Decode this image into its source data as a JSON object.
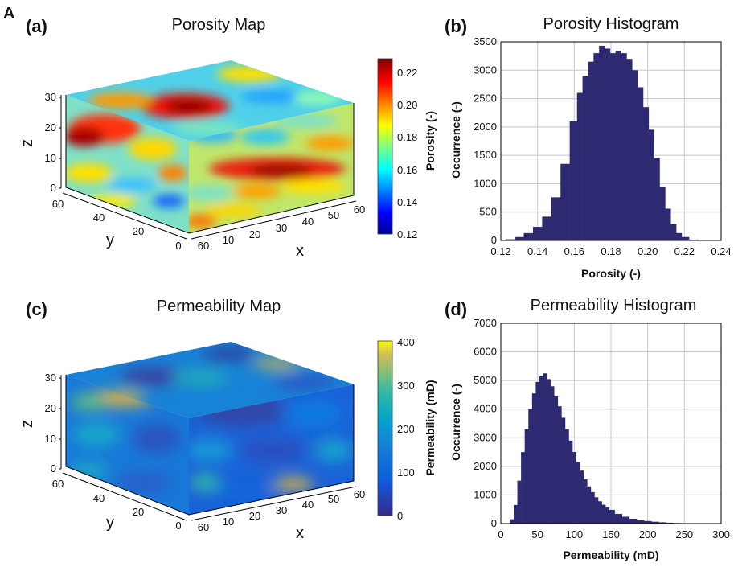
{
  "figure_label": "A",
  "colors": {
    "histogram_fill": "#2e2a72",
    "jet_low": "#00008f",
    "jet_high": "#800000",
    "parula_low": "#352a87",
    "parula_high": "#f9fb0e"
  },
  "chart_data": [
    {
      "panel": "(a)",
      "type": "heatmap",
      "title": "Porosity Map",
      "x_label": "x",
      "y_label": "y",
      "z_label": "z",
      "x_ticks": [
        "10",
        "20",
        "30",
        "40",
        "50",
        "60"
      ],
      "y_ticks": [
        "60",
        "40",
        "20",
        "0"
      ],
      "z_ticks": [
        "30",
        "20",
        "10",
        "0"
      ],
      "colorbar": {
        "label": "Porosity (-)",
        "min": 0.12,
        "max": 0.22,
        "ticks": [
          "0.22",
          "0.20",
          "0.18",
          "0.16",
          "0.14",
          "0.12"
        ],
        "colormap": "jet"
      }
    },
    {
      "panel": "(b)",
      "type": "bar",
      "title": "Porosity Histogram",
      "xlabel": "Porosity (-)",
      "ylabel": "Occurrence (-)",
      "xlim": [
        0.12,
        0.24
      ],
      "ylim": [
        0,
        3500
      ],
      "x_ticks": [
        "0.12",
        "0.14",
        "0.16",
        "0.18",
        "0.20",
        "0.22",
        "0.24"
      ],
      "y_ticks": [
        "0",
        "500",
        "1000",
        "1500",
        "2000",
        "2500",
        "3000",
        "3500"
      ],
      "grid": true,
      "x": [
        0.125,
        0.13,
        0.135,
        0.14,
        0.145,
        0.15,
        0.155,
        0.16,
        0.163,
        0.166,
        0.169,
        0.172,
        0.175,
        0.178,
        0.181,
        0.184,
        0.187,
        0.19,
        0.193,
        0.196,
        0.199,
        0.202,
        0.205,
        0.208,
        0.211,
        0.214,
        0.217,
        0.22,
        0.225
      ],
      "values": [
        20,
        60,
        130,
        240,
        420,
        760,
        1350,
        2100,
        2600,
        2900,
        3150,
        3300,
        3430,
        3380,
        3300,
        3340,
        3300,
        3200,
        3000,
        2700,
        2350,
        1950,
        1450,
        950,
        560,
        290,
        130,
        60,
        15
      ]
    },
    {
      "panel": "(c)",
      "type": "heatmap",
      "title": "Permeability Map",
      "x_label": "x",
      "y_label": "y",
      "z_label": "z",
      "x_ticks": [
        "10",
        "20",
        "30",
        "40",
        "50",
        "60"
      ],
      "y_ticks": [
        "60",
        "40",
        "20",
        "0"
      ],
      "z_ticks": [
        "30",
        "20",
        "10",
        "0"
      ],
      "colorbar": {
        "label": "Permeability (mD)",
        "min": 0,
        "max": 400,
        "ticks": [
          "400",
          "300",
          "200",
          "100",
          "0"
        ],
        "colormap": "parula"
      }
    },
    {
      "panel": "(d)",
      "type": "bar",
      "title": "Permeability Histogram",
      "xlabel": "Permeability (mD)",
      "ylabel": "Occurrence (-)",
      "xlim": [
        0,
        300
      ],
      "ylim": [
        0,
        7000
      ],
      "x_ticks": [
        "0",
        "50",
        "100",
        "150",
        "200",
        "250",
        "300"
      ],
      "y_ticks": [
        "0",
        "1000",
        "2000",
        "3000",
        "4000",
        "5000",
        "6000",
        "7000"
      ],
      "grid": true,
      "x": [
        15,
        20,
        25,
        30,
        35,
        40,
        45,
        50,
        55,
        60,
        65,
        70,
        75,
        80,
        85,
        90,
        95,
        100,
        105,
        110,
        115,
        120,
        125,
        130,
        135,
        140,
        145,
        150,
        160,
        170,
        180,
        190,
        200,
        210,
        220,
        230,
        240,
        250,
        260
      ],
      "values": [
        150,
        650,
        1500,
        2500,
        3300,
        4000,
        4550,
        4950,
        5150,
        5250,
        5050,
        4800,
        4450,
        4100,
        3700,
        3300,
        2900,
        2500,
        2150,
        1850,
        1550,
        1300,
        1100,
        920,
        780,
        660,
        560,
        480,
        340,
        240,
        170,
        120,
        90,
        65,
        45,
        30,
        20,
        12,
        6
      ]
    }
  ]
}
